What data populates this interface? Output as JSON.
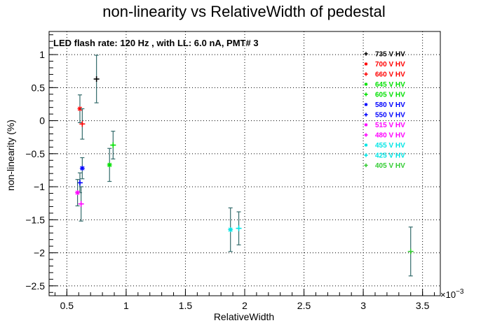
{
  "chart_data": {
    "type": "scatter",
    "title": "non-linearity vs RelativeWidth of pedestal",
    "subtitle": "LED flash rate: 120 Hz , with LL: 6.0 nA, PMT# 3",
    "xlabel": "RelativeWidth",
    "ylabel": "non-linearity (%)",
    "x_multiplier": "×10",
    "x_multiplier_exp": "−3",
    "xlim": [
      0.35,
      3.65
    ],
    "ylim": [
      -2.65,
      1.35
    ],
    "x_ticks": [
      0.5,
      1,
      1.5,
      2,
      2.5,
      3,
      3.5
    ],
    "x_tick_labels": [
      "0.5",
      "1",
      "1.5",
      "2",
      "2.5",
      "3",
      "3.5"
    ],
    "y_ticks": [
      1,
      0.5,
      0,
      -0.5,
      -1,
      -1.5,
      -2,
      -2.5
    ],
    "y_tick_labels": [
      "1",
      "0.5",
      "0",
      "−0.5",
      "−1",
      "−1.5",
      "−2",
      "−2.5"
    ],
    "grid": true,
    "legend_position": "top-right",
    "error_bar_color": "#336b6b",
    "series": [
      {
        "name": "735 V HV",
        "color": "#000000",
        "marker": "+",
        "points": [
          {
            "x": 0.75,
            "y": 0.63,
            "err": 0.36
          }
        ]
      },
      {
        "name": "700 V HV",
        "color": "#ff0000",
        "marker": "*",
        "points": [
          {
            "x": 0.61,
            "y": 0.18,
            "err": 0.21
          }
        ]
      },
      {
        "name": "660 V HV",
        "color": "#ff0000",
        "marker": "+",
        "points": [
          {
            "x": 0.63,
            "y": -0.05,
            "err": 0.23
          }
        ]
      },
      {
        "name": "645 V HV",
        "color": "#00e000",
        "marker": "*",
        "points": [
          {
            "x": 0.86,
            "y": -0.67,
            "err": 0.25
          }
        ]
      },
      {
        "name": "605 V HV",
        "color": "#00e000",
        "marker": "+",
        "points": [
          {
            "x": 0.89,
            "y": -0.37,
            "err": 0.21
          }
        ]
      },
      {
        "name": "580 V HV",
        "color": "#0000ff",
        "marker": "*",
        "points": [
          {
            "x": 0.63,
            "y": -0.72,
            "err": 0.16
          }
        ]
      },
      {
        "name": "550 V HV",
        "color": "#0000ff",
        "marker": "+",
        "points": [
          {
            "x": 0.61,
            "y": -0.94,
            "err": 0.15
          }
        ]
      },
      {
        "name": "515 V HV",
        "color": "#ff00ff",
        "marker": "*",
        "points": [
          {
            "x": 0.59,
            "y": -1.09,
            "err": 0.2
          }
        ]
      },
      {
        "name": "480 V HV",
        "color": "#ff00ff",
        "marker": "+",
        "points": [
          {
            "x": 0.62,
            "y": -1.26,
            "err": 0.26
          }
        ]
      },
      {
        "name": "455 V HV",
        "color": "#00e5e5",
        "marker": "*",
        "points": [
          {
            "x": 1.88,
            "y": -1.65,
            "err": 0.33
          }
        ]
      },
      {
        "name": "425 V HV",
        "color": "#00e5e5",
        "marker": "+",
        "points": [
          {
            "x": 1.95,
            "y": -1.63,
            "err": 0.25
          }
        ]
      },
      {
        "name": "405 V HV",
        "color": "#33cc33",
        "marker": "+",
        "points": [
          {
            "x": 3.4,
            "y": -1.98,
            "err": 0.37
          }
        ]
      }
    ]
  }
}
